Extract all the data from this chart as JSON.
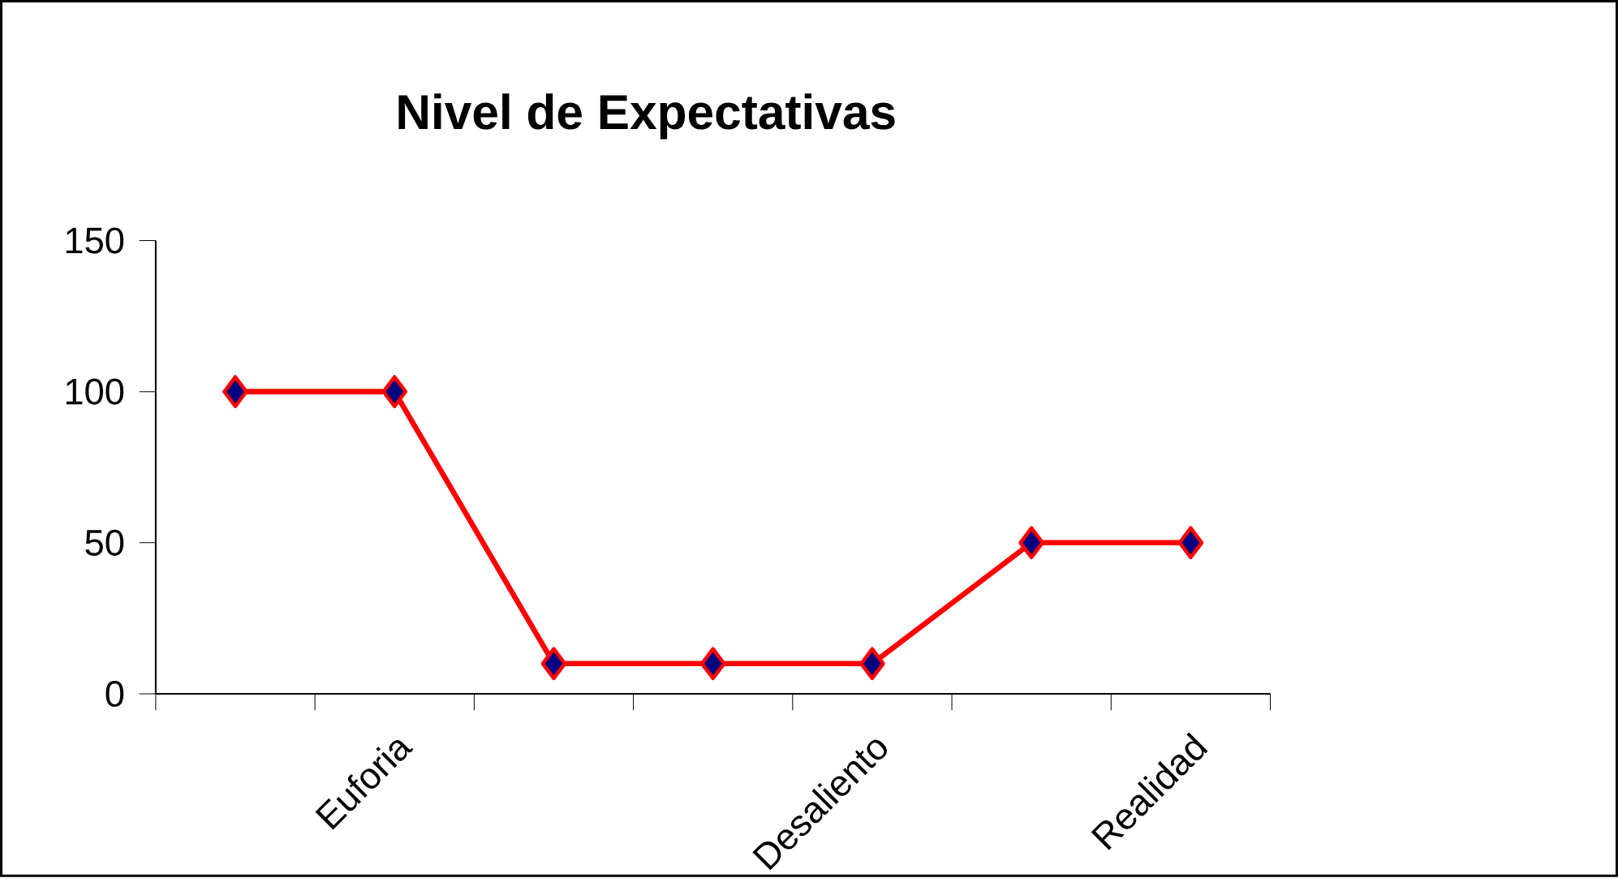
{
  "chart_data": {
    "type": "line",
    "title": "Nivel de Expectativas",
    "categories": [
      null,
      "Euforia",
      null,
      null,
      "Desaliento",
      null,
      "Realidad"
    ],
    "series": [
      {
        "color": "#ff0000",
        "values": [
          100,
          100,
          10,
          10,
          10,
          50,
          50
        ]
      }
    ],
    "marker": "diamond",
    "ylim": [
      0,
      150
    ],
    "yticks": [
      0,
      50,
      100,
      150
    ],
    "grid": false
  }
}
